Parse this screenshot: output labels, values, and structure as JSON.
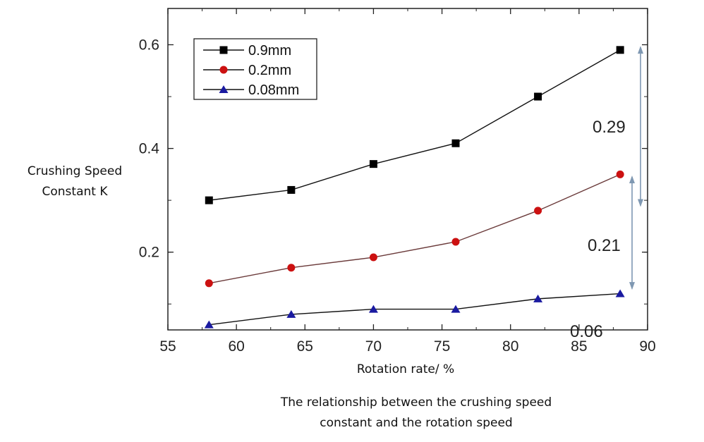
{
  "chart_data": {
    "type": "line",
    "title": "",
    "xlabel": "Rotation rate/ %",
    "ylabel_line1": "Crushing Speed",
    "ylabel_line2": "Constant K",
    "caption_line1": "The relationship between the crushing speed",
    "caption_line2": "constant and the rotation speed",
    "xlim": [
      55,
      90
    ],
    "ylim": [
      0.05,
      0.67
    ],
    "xticks": [
      55,
      60,
      65,
      70,
      75,
      80,
      85,
      90
    ],
    "yticks": [
      0.2,
      0.4,
      0.6
    ],
    "ytick_labels": [
      "0.2",
      "0.4",
      "0.6"
    ],
    "xtick_labels": [
      "55",
      "60",
      "65",
      "70",
      "75",
      "80",
      "85",
      "90"
    ],
    "grid": false,
    "legend_position": "top-left",
    "x": [
      58,
      64,
      70,
      76,
      82,
      88
    ],
    "series": [
      {
        "name": "0.9mm",
        "color": "#000000",
        "marker": "square",
        "values": [
          0.3,
          0.32,
          0.37,
          0.41,
          0.5,
          0.59
        ]
      },
      {
        "name": "0.2mm",
        "color": "#cc1111",
        "marker": "circle",
        "values": [
          0.14,
          0.17,
          0.19,
          0.22,
          0.28,
          0.35
        ]
      },
      {
        "name": "0.08mm",
        "color": "#1a1aa0",
        "marker": "triangle",
        "values": [
          0.06,
          0.08,
          0.09,
          0.09,
          0.11,
          0.12
        ]
      }
    ],
    "annotations": [
      {
        "text": "0.29",
        "arrow_from": 0.595,
        "arrow_to": 0.29
      },
      {
        "text": "0.21",
        "arrow_from": 0.345,
        "arrow_to": 0.13
      },
      {
        "text": "0.06"
      }
    ],
    "annotation_arrow_color": "#7f98b2"
  }
}
